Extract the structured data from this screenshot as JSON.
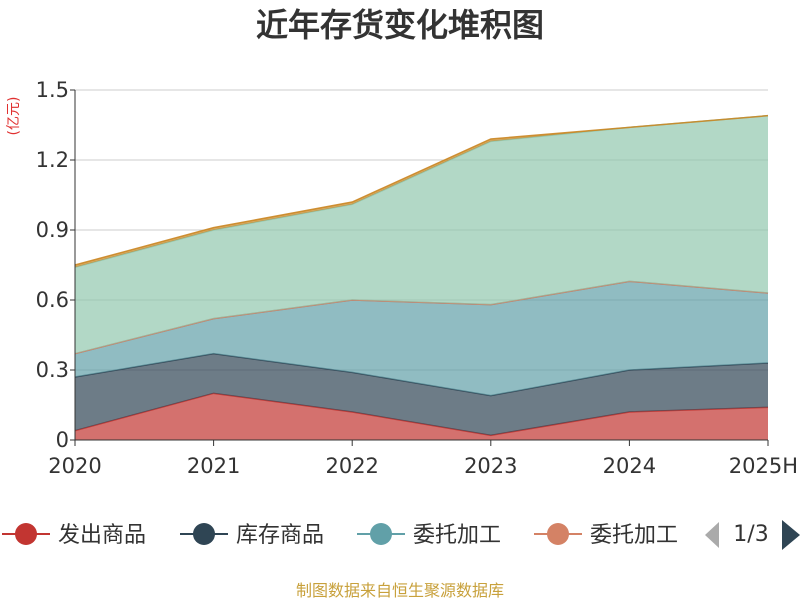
{
  "chart_data": {
    "type": "area",
    "title": "近年存货变化堆积图",
    "unit_label": "(亿元)",
    "categories": [
      "2020",
      "2021",
      "2022",
      "2023",
      "2024",
      "2025H"
    ],
    "yticks": [
      "0",
      "0.3",
      "0.6",
      "0.9",
      "1.2",
      "1.5"
    ],
    "ylim": [
      0,
      1.5
    ],
    "stacked": true,
    "grid": true,
    "series": [
      {
        "name": "发出商品",
        "color": "#c23531",
        "values": [
          0.04,
          0.2,
          0.12,
          0.02,
          0.12,
          0.14
        ]
      },
      {
        "name": "库存商品",
        "color": "#2f4554",
        "values": [
          0.23,
          0.17,
          0.17,
          0.17,
          0.18,
          0.19
        ]
      },
      {
        "name": "委托加工",
        "color": "#61a0a8",
        "values": [
          0.1,
          0.15,
          0.31,
          0.39,
          0.38,
          0.3
        ]
      },
      {
        "name": "委托加工",
        "color": "#d48265",
        "values": [
          0.0,
          0.0,
          0.0,
          0.0,
          0.0,
          0.0
        ]
      },
      {
        "name": "",
        "color": "#91c7ae",
        "values": [
          0.37,
          0.38,
          0.41,
          0.7,
          0.66,
          0.76
        ]
      },
      {
        "name": "",
        "color": "#ca8622",
        "values": [
          0.01,
          0.01,
          0.01,
          0.01,
          0.0,
          0.0
        ]
      }
    ],
    "legend": {
      "position": "bottom",
      "items": [
        {
          "name": "发出商品",
          "color": "#c23531"
        },
        {
          "name": "库存商品",
          "color": "#2f4554"
        },
        {
          "name": "委托加工",
          "color": "#61a0a8"
        },
        {
          "name": "委托加工",
          "color": "#d48265"
        }
      ],
      "page": "1/3"
    }
  },
  "source_text": "制图数据来自恒生聚源数据库"
}
